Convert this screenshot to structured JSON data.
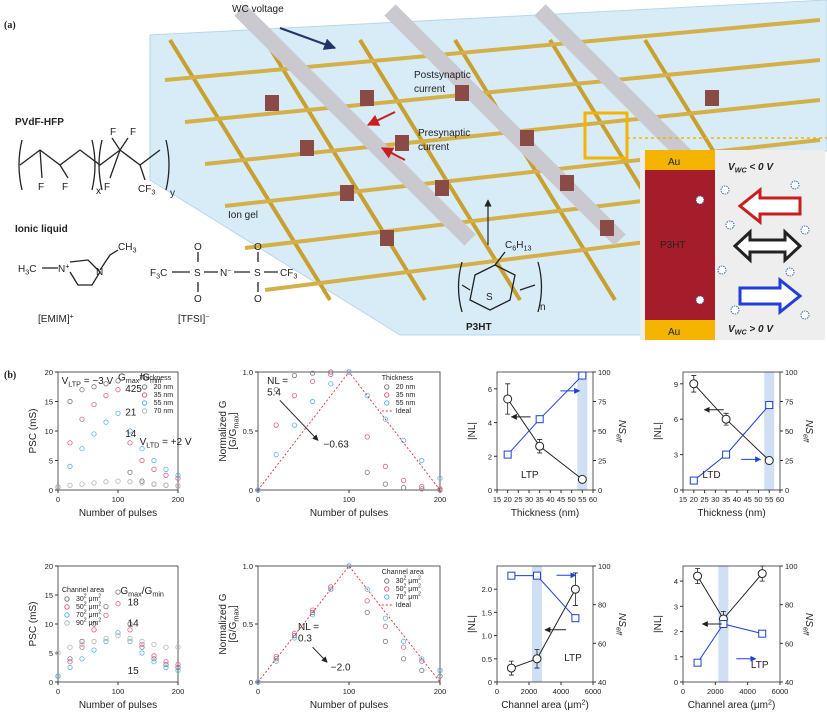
{
  "panel_labels": [
    "(a)",
    "(b)"
  ],
  "panel_a": {
    "wc_voltage": "WC voltage",
    "postsynaptic": [
      "Postsynaptic",
      "current"
    ],
    "presynaptic": [
      "Presynaptic",
      "current"
    ],
    "pvdf": "PVdF-HFP",
    "ionic_liquid": "Ionic liquid",
    "ion_gel": "Ion gel",
    "emim": [
      "[EMIM]",
      {
        "sup": "+"
      }
    ],
    "tfsi": [
      "[TFSI]",
      {
        "sup": "−"
      }
    ],
    "p3ht": "P3HT",
    "atoms": [
      "F",
      "F",
      "x",
      "F",
      "F",
      "F",
      [
        "CF",
        {
          "sub": "3"
        }
      ],
      "y",
      [
        "H",
        {
          "sub": "3"
        },
        "C"
      ],
      [
        "N",
        {
          "sup": "+"
        }
      ],
      "N",
      [
        "CH",
        {
          "sub": "3"
        }
      ],
      [
        "F",
        {
          "sub": "3"
        },
        "C"
      ],
      "S",
      [
        "N",
        {
          "sup": "−"
        }
      ],
      "S",
      [
        "CF",
        {
          "sub": "3"
        }
      ],
      "O",
      "O",
      "O",
      "O",
      [
        "C",
        {
          "sub": "6"
        },
        "H",
        {
          "sub": "13"
        }
      ],
      "S",
      "n"
    ],
    "inset": {
      "au_top": "Au",
      "au_bottom": "Au",
      "p3ht": "P3HT",
      "vneg": [
        "V",
        {
          "sub": "WC"
        },
        " < 0 V"
      ],
      "vpos": [
        "V",
        {
          "sub": "WC"
        },
        " > 0 V"
      ]
    }
  },
  "chart_data": [
    {
      "type": "line",
      "x": [
        0,
        20,
        40,
        60,
        80,
        100,
        120,
        140,
        160,
        180,
        200
      ],
      "xlim": [
        0,
        200
      ],
      "xticks": [
        0,
        100,
        200
      ],
      "ylim": [
        0,
        20
      ],
      "yticks": [
        0,
        5,
        10,
        15,
        20
      ],
      "xlabel": "Number of pulses",
      "ylabel": [
        "PSC (mS)"
      ],
      "legend": "upper right",
      "legend_title": "Thickness",
      "series": [
        {
          "name": "20 nm",
          "color": "#7a7a7a",
          "style": "circles",
          "values": [
            0.5,
            15,
            17,
            17.5,
            18,
            18.5,
            3,
            1.5,
            1,
            0.8,
            0.7
          ]
        },
        {
          "name": "35 nm",
          "color": "#e0608a",
          "style": "circles",
          "values": [
            0.5,
            8,
            12,
            14.5,
            16,
            17,
            8,
            5,
            3.5,
            2.5,
            2
          ]
        },
        {
          "name": "55 nm",
          "color": "#5ab4e0",
          "style": "circles",
          "values": [
            0.5,
            4,
            7,
            9.5,
            11.5,
            13,
            10,
            7,
            5,
            3.5,
            2.5
          ]
        },
        {
          "name": "70 nm",
          "color": "#b5b5b5",
          "style": "circles",
          "values": [
            0.5,
            0.8,
            1,
            1.2,
            1.4,
            1.5,
            1.4,
            1.2,
            1,
            0.8,
            0.7
          ]
        }
      ],
      "annotations": [
        {
          "text": [
            "V",
            {
              "sub": "LTP"
            },
            " = −3 V"
          ]
        },
        {
          "text": [
            "V",
            {
              "sub": "LTD"
            },
            " = +2 V"
          ]
        },
        {
          "text": [
            "G",
            {
              "sub": "max"
            },
            "/G",
            {
              "sub": "min"
            }
          ]
        },
        {
          "text": "425",
          "color": "#555555"
        },
        {
          "text": "21",
          "color": "#d0457a"
        },
        {
          "text": "14",
          "color": "#3a9fd0"
        }
      ]
    },
    {
      "type": "line",
      "x": [
        0,
        20,
        40,
        60,
        80,
        100,
        120,
        140,
        160,
        180,
        200
      ],
      "xlim": [
        0,
        200
      ],
      "xticks": [
        0,
        100,
        200
      ],
      "ylim": [
        0,
        1
      ],
      "yticks": [
        0,
        0.5,
        {
          "value": 1,
          "label": "1.0"
        }
      ],
      "xlabel": "Number of pulses",
      "ylabel": [
        "Normalized G",
        [
          "[G/G",
          {
            "sub": "max"
          },
          "]"
        ]
      ],
      "legend": "upper right",
      "legend_title": "Thickness",
      "series": [
        {
          "name": "20 nm",
          "color": "#7a7a7a",
          "style": "circles",
          "values": [
            0,
            0.85,
            0.97,
            0.99,
            1,
            1,
            0.15,
            0.05,
            0.02,
            0.01,
            0
          ]
        },
        {
          "name": "35 nm",
          "color": "#e0608a",
          "style": "circles",
          "values": [
            0,
            0.55,
            0.8,
            0.92,
            0.98,
            1,
            0.45,
            0.2,
            0.08,
            0.03,
            0.01
          ]
        },
        {
          "name": "55 nm",
          "color": "#5ab4e0",
          "style": "circles",
          "values": [
            0,
            0.3,
            0.55,
            0.75,
            0.9,
            1,
            0.8,
            0.6,
            0.42,
            0.25,
            0.1
          ]
        },
        {
          "name": "Ideal",
          "color": "#e03030",
          "style": "dashed",
          "values": [
            0,
            0.2,
            0.4,
            0.6,
            0.8,
            1,
            0.8,
            0.6,
            0.4,
            0.2,
            0
          ]
        }
      ],
      "annotations": [
        {
          "text": "NL ="
        },
        {
          "text": "5.4"
        },
        {
          "text": "−0.63"
        }
      ]
    },
    {
      "type": "line",
      "x": [
        20,
        35,
        55
      ],
      "xlim": [
        15,
        60
      ],
      "xticks": [
        15,
        20,
        25,
        30,
        35,
        40,
        45,
        50,
        55,
        60
      ],
      "ylim": [
        0,
        7
      ],
      "yticks": [
        0,
        2,
        4,
        6
      ],
      "y2lim": [
        0,
        100
      ],
      "y2ticks": [
        0,
        25,
        50,
        75,
        100
      ],
      "xlabel": "Thickness (nm)",
      "ylabel": [
        "|NL|"
      ],
      "y2label": [
        [
          "NS",
          {
            "sub": "eff"
          }
        ]
      ],
      "series": [
        {
          "color": "#222222",
          "style": "line-markers",
          "marker": "circle",
          "values": [
            5.4,
            2.6,
            0.63
          ],
          "errors": [
            0.9,
            0.4,
            0.2
          ]
        },
        {
          "color": "#1f3fd8",
          "style": "line-markers",
          "marker": "square",
          "axis": "y2",
          "values": [
            30,
            60,
            97
          ]
        }
      ],
      "annotations": [
        {
          "text": "LTP"
        }
      ]
    },
    {
      "type": "line",
      "x": [
        20,
        35,
        55
      ],
      "xlim": [
        15,
        60
      ],
      "xticks": [
        15,
        20,
        25,
        30,
        35,
        40,
        45,
        50,
        55,
        60
      ],
      "ylim": [
        0,
        10
      ],
      "yticks": [
        0,
        3,
        6,
        9
      ],
      "y2lim": [
        0,
        100
      ],
      "y2ticks": [
        0,
        25,
        50,
        75,
        100
      ],
      "xlabel": "Thickness (nm)",
      "ylabel": [
        "|NL|"
      ],
      "y2label": [
        [
          "NS",
          {
            "sub": "eff"
          }
        ]
      ],
      "series": [
        {
          "color": "#222222",
          "style": "line-markers",
          "marker": "circle",
          "values": [
            9,
            6,
            2.5
          ],
          "errors": [
            0.7,
            0.5,
            0.3
          ]
        },
        {
          "color": "#1f3fd8",
          "style": "line-markers",
          "marker": "square",
          "axis": "y2",
          "values": [
            8,
            30,
            72
          ]
        }
      ],
      "annotations": [
        {
          "text": "LTD"
        }
      ]
    },
    {
      "type": "line",
      "x": [
        0,
        20,
        40,
        60,
        80,
        100,
        120,
        140,
        160,
        180,
        200
      ],
      "xlim": [
        0,
        200
      ],
      "xticks": [
        0,
        100,
        200
      ],
      "ylim": [
        0,
        20
      ],
      "yticks": [
        0,
        5,
        10,
        15,
        20
      ],
      "xlabel": "Number of pulses",
      "ylabel": [
        "PSC (mS)"
      ],
      "legend": "upper left",
      "legend_title": "Channel area",
      "series": [
        {
          "name": [
            "30",
            {
              "sup": "2"
            },
            " μm",
            {
              "sup": "2"
            }
          ],
          "color": "#7a7a7a",
          "style": "circles",
          "values": [
            1,
            4,
            7,
            10,
            13,
            15.5,
            10,
            6,
            4,
            3,
            2.5
          ]
        },
        {
          "name": [
            "50",
            {
              "sup": "2"
            },
            " μm",
            {
              "sup": "2"
            }
          ],
          "color": "#e0608a",
          "style": "circles",
          "values": [
            1,
            3.5,
            6,
            9,
            11.5,
            13.5,
            9,
            6.5,
            4.5,
            3.5,
            3
          ]
        },
        {
          "name": [
            "70",
            {
              "sup": "2"
            },
            " μm",
            {
              "sup": "2"
            }
          ],
          "color": "#5ab4e0",
          "style": "circles",
          "values": [
            1,
            2.5,
            4,
            5.5,
            7,
            8.5,
            7,
            5,
            3.5,
            2.5,
            2
          ]
        },
        {
          "name": [
            "90",
            {
              "sup": "2"
            },
            " μm",
            {
              "sup": "2"
            }
          ],
          "color": "#b5b5b5",
          "style": "circles",
          "values": [
            5,
            6,
            6.5,
            7,
            7.5,
            8,
            7.5,
            7,
            6.5,
            6,
            6
          ]
        }
      ],
      "annotations": [
        {
          "text": [
            "G",
            {
              "sub": "max"
            },
            "/G",
            {
              "sub": "min"
            }
          ]
        },
        {
          "text": "18",
          "color": "#555555"
        },
        {
          "text": "14",
          "color": "#d0457a"
        },
        {
          "text": "15",
          "color": "#3a9fd0"
        }
      ]
    },
    {
      "type": "line",
      "x": [
        0,
        20,
        40,
        60,
        80,
        100,
        120,
        140,
        160,
        180,
        200
      ],
      "xlim": [
        0,
        200
      ],
      "xticks": [
        0,
        100,
        200
      ],
      "ylim": [
        0,
        1
      ],
      "yticks": [
        0,
        0.5,
        {
          "value": 1,
          "label": "1.0"
        }
      ],
      "xlabel": "Number of pulses",
      "ylabel": [
        "Normalized G",
        [
          "[G/G",
          {
            "sub": "max"
          },
          "]"
        ]
      ],
      "legend": "upper right",
      "legend_title": "Channel area",
      "series": [
        {
          "name": [
            "30",
            {
              "sup": "2"
            },
            " μm",
            {
              "sup": "2"
            }
          ],
          "color": "#7a7a7a",
          "style": "circles",
          "values": [
            0,
            0.2,
            0.4,
            0.6,
            0.8,
            1,
            0.6,
            0.35,
            0.2,
            0.1,
            0.05
          ]
        },
        {
          "name": [
            "50",
            {
              "sup": "2"
            },
            " μm",
            {
              "sup": "2"
            }
          ],
          "color": "#e0608a",
          "style": "circles",
          "values": [
            0,
            0.22,
            0.42,
            0.62,
            0.82,
            1,
            0.7,
            0.48,
            0.3,
            0.18,
            0.1
          ]
        },
        {
          "name": [
            "70",
            {
              "sup": "2"
            },
            " μm",
            {
              "sup": "2"
            }
          ],
          "color": "#5ab4e0",
          "style": "circles",
          "values": [
            0,
            0.18,
            0.38,
            0.58,
            0.8,
            1,
            0.8,
            0.55,
            0.35,
            0.2,
            0.1
          ]
        },
        {
          "name": "Ideal",
          "color": "#e03030",
          "style": "dashed",
          "values": [
            0,
            0.2,
            0.4,
            0.6,
            0.8,
            1,
            0.8,
            0.6,
            0.4,
            0.2,
            0
          ]
        }
      ],
      "annotations": [
        {
          "text": "NL ="
        },
        {
          "text": "0.3"
        },
        {
          "text": "−2.0"
        }
      ]
    },
    {
      "type": "line",
      "x": [
        900,
        2500,
        4900
      ],
      "xlim": [
        0,
        6000
      ],
      "xticks": [
        0,
        2000,
        4000,
        6000
      ],
      "ylim": [
        0,
        2.5
      ],
      "yticks": [
        0,
        0.5,
        {
          "value": 1,
          "label": "1.0"
        },
        1.5,
        {
          "value": 2,
          "label": "2.0"
        }
      ],
      "y2lim": [
        40,
        100
      ],
      "y2ticks": [
        40,
        60,
        80,
        100
      ],
      "xlabel": [
        "Channel area (μm",
        {
          "sup": "2"
        },
        ")"
      ],
      "ylabel": [
        "|NL|"
      ],
      "y2label": [
        [
          "NS",
          {
            "sub": "eff"
          }
        ]
      ],
      "series": [
        {
          "color": "#222222",
          "style": "line-markers",
          "marker": "circle",
          "values": [
            0.3,
            0.5,
            2.0
          ],
          "errors": [
            0.15,
            0.2,
            0.35
          ]
        },
        {
          "color": "#1f3fd8",
          "style": "line-markers",
          "marker": "square",
          "axis": "y2",
          "values": [
            95,
            95,
            73
          ]
        }
      ],
      "annotations": [
        {
          "text": "LTP"
        }
      ]
    },
    {
      "type": "line",
      "x": [
        900,
        2500,
        4900
      ],
      "xlim": [
        0,
        6000
      ],
      "xticks": [
        0,
        2000,
        4000,
        6000
      ],
      "ylim": [
        0,
        4.6
      ],
      "yticks": [
        0,
        1,
        2,
        3,
        4
      ],
      "y2lim": [
        40,
        100
      ],
      "y2ticks": [
        40,
        60,
        80,
        100
      ],
      "xlabel": [
        "Channel area (μm",
        {
          "sup": "2"
        },
        ")"
      ],
      "ylabel": [
        "|NL|"
      ],
      "y2label": [
        [
          "NS",
          {
            "sub": "eff"
          }
        ]
      ],
      "series": [
        {
          "color": "#222222",
          "style": "line-markers",
          "marker": "circle",
          "values": [
            4.2,
            2.5,
            4.3
          ],
          "errors": [
            0.3,
            0.3,
            0.3
          ]
        },
        {
          "color": "#1f3fd8",
          "style": "line-markers",
          "marker": "square",
          "axis": "y2",
          "values": [
            50,
            70,
            65
          ]
        }
      ],
      "annotations": [
        {
          "text": "LTP"
        }
      ]
    }
  ]
}
